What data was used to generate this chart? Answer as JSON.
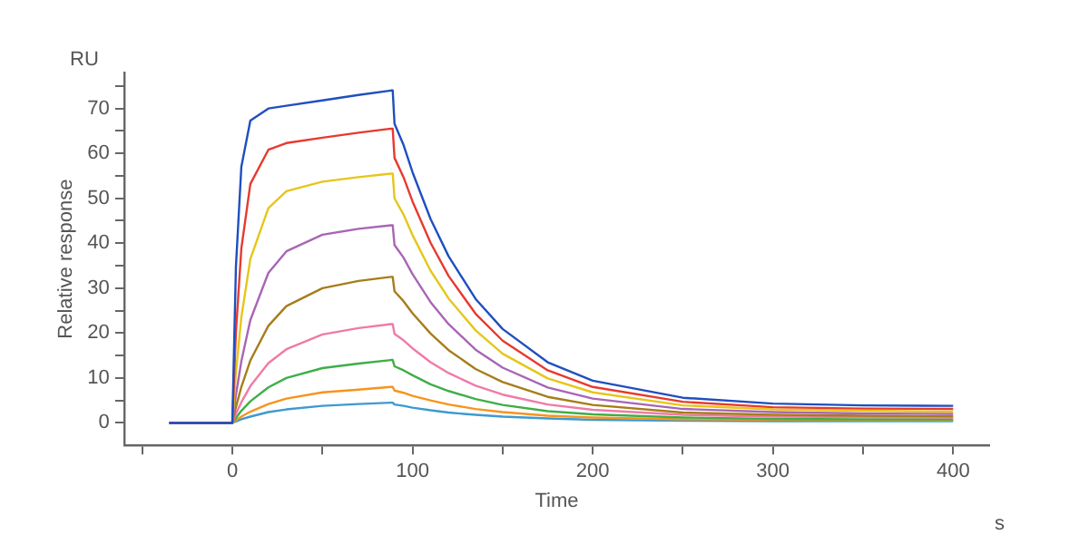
{
  "chart_data": {
    "type": "line",
    "xlabel": "Time",
    "ylabel": "Relative response",
    "annotations": [
      "RU",
      "s"
    ],
    "x": [
      -35,
      0,
      2,
      5,
      10,
      20,
      30,
      50,
      70,
      88,
      89,
      90,
      95,
      100,
      110,
      120,
      135,
      150,
      175,
      200,
      250,
      300,
      350,
      400
    ],
    "xlim": [
      -60,
      420
    ],
    "xticks": [
      {
        "value": -50,
        "label": null
      },
      0,
      {
        "value": 50,
        "label": null
      },
      100,
      {
        "value": 150,
        "label": null
      },
      200,
      {
        "value": 250,
        "label": null
      },
      300,
      {
        "value": 350,
        "label": null
      },
      400
    ],
    "ylim": [
      -5,
      78
    ],
    "yticks": [
      0,
      {
        "value": 5,
        "label": null
      },
      10,
      {
        "value": 15,
        "label": null
      },
      20,
      {
        "value": 25,
        "label": null
      },
      30,
      {
        "value": 35,
        "label": null
      },
      40,
      {
        "value": 45,
        "label": null
      },
      50,
      {
        "value": 55,
        "label": null
      },
      60,
      {
        "value": 65,
        "label": null
      },
      70,
      {
        "value": 75,
        "label": null
      }
    ],
    "grid": false,
    "legend": false,
    "marker": "none",
    "line_style": "solid",
    "series": [
      {
        "color": "#1f4fbf",
        "values": [
          0,
          0,
          34.8,
          57,
          67.3,
          70,
          70.6,
          71.8,
          73,
          74,
          74,
          66.6,
          61.9,
          55.8,
          45.4,
          37.1,
          27.6,
          20.9,
          13.5,
          9.4,
          5.6,
          4.3,
          3.9,
          3.8
        ]
      },
      {
        "color": "#e8392f",
        "values": [
          0,
          0,
          20.2,
          38.8,
          53.2,
          60.8,
          62.3,
          63.5,
          64.6,
          65.5,
          65.5,
          59,
          54.7,
          49.3,
          40.1,
          32.7,
          24.3,
          18.3,
          11.7,
          8,
          4.7,
          3.5,
          3.2,
          3.1
        ]
      },
      {
        "color": "#e6c619",
        "values": [
          0,
          0,
          11.1,
          23.5,
          36.5,
          47.8,
          51.6,
          53.7,
          54.7,
          55.5,
          55.5,
          50,
          46.4,
          41.8,
          33.9,
          27.7,
          20.6,
          15.4,
          9.9,
          6.8,
          3.9,
          3,
          2.7,
          2.5
        ]
      },
      {
        "color": "#a865b5",
        "values": [
          0,
          0,
          6.2,
          13.7,
          22.9,
          33.4,
          38.2,
          41.9,
          43.2,
          44,
          44,
          39.6,
          36.8,
          33.1,
          26.9,
          22,
          16.3,
          12.3,
          7.9,
          5.4,
          3.1,
          2.4,
          2.1,
          2
        ]
      },
      {
        "color": "#a67d1a",
        "values": [
          0,
          0,
          3.5,
          8,
          13.9,
          21.6,
          26,
          30,
          31.6,
          32.5,
          32.5,
          29.3,
          27.1,
          24.4,
          19.9,
          16.2,
          12,
          9.1,
          5.8,
          4,
          2.3,
          1.8,
          1.6,
          1.5
        ]
      },
      {
        "color": "#f07aa8",
        "values": [
          0,
          0,
          2,
          4.6,
          8.2,
          13.3,
          16.4,
          19.7,
          21.1,
          22,
          22,
          19.8,
          18.4,
          16.6,
          13.5,
          11.1,
          8.3,
          6.3,
          4.1,
          2.9,
          1.8,
          1.4,
          1.3,
          1.2
        ]
      },
      {
        "color": "#3fae49",
        "values": [
          0,
          0,
          1.1,
          2.7,
          4.8,
          7.9,
          10,
          12.2,
          13.2,
          14,
          14,
          12.6,
          11.7,
          10.6,
          8.6,
          7.1,
          5.3,
          4,
          2.6,
          1.9,
          1.2,
          0.9,
          0.8,
          0.8
        ]
      },
      {
        "color": "#f7941d",
        "values": [
          0,
          0,
          0.6,
          1.4,
          2.5,
          4.2,
          5.4,
          6.8,
          7.4,
          8,
          8,
          7.2,
          6.7,
          6,
          5,
          4.1,
          3.1,
          2.4,
          1.6,
          1.2,
          0.8,
          0.7,
          0.6,
          0.6
        ]
      },
      {
        "color": "#3d9ad1",
        "values": [
          0,
          0,
          0.3,
          0.8,
          1.4,
          2.4,
          3,
          3.8,
          4.2,
          4.5,
          4.5,
          4.1,
          3.8,
          3.4,
          2.8,
          2.3,
          1.8,
          1.4,
          1,
          0.7,
          0.5,
          0.4,
          0.4,
          0.4
        ]
      }
    ]
  }
}
